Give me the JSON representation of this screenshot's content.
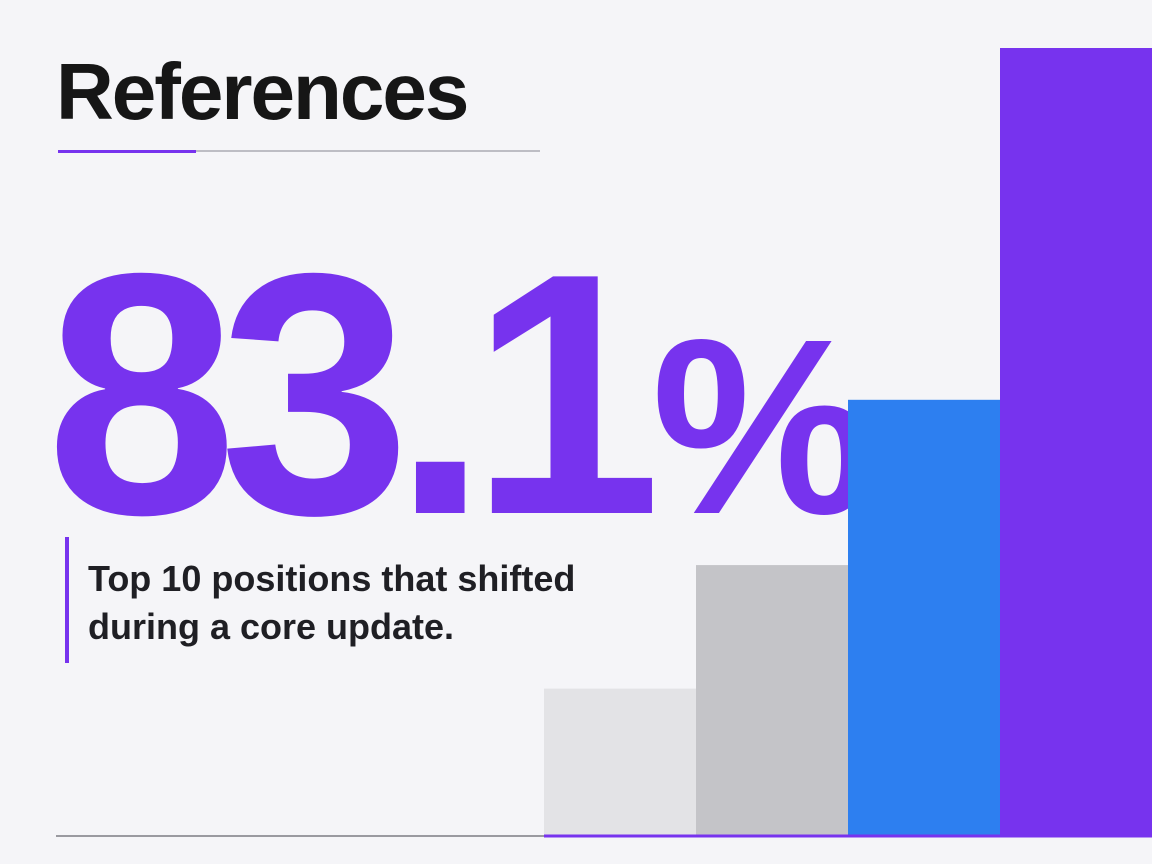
{
  "title": "References",
  "stat": {
    "number": "83.1",
    "suffix": "%"
  },
  "caption": {
    "line1": "Top 10 positions that shifted",
    "line2": "during a core update."
  },
  "colors": {
    "accent": "#7733ee",
    "blue": "#2d7ff0",
    "gray_light": "#e3e3e6",
    "gray_mid": "#c4c4c8",
    "baseline": "#9a9aa0",
    "title_rule": "#bdbdc4"
  },
  "chart_data": {
    "type": "bar",
    "title": "",
    "xlabel": "",
    "ylabel": "",
    "categories": [
      "",
      "",
      "",
      ""
    ],
    "values": [
      18.6,
      34.3,
      55.3,
      100
    ],
    "bar_colors": [
      "#e3e3e6",
      "#c4c4c8",
      "#2d7ff0",
      "#7733ee"
    ],
    "ylim": [
      0,
      100
    ],
    "grid": false,
    "legend": "none"
  }
}
